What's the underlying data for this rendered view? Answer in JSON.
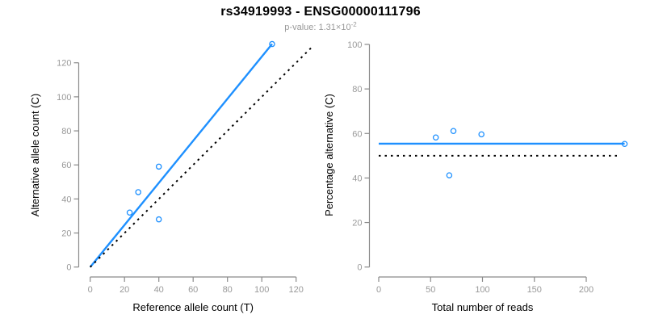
{
  "header": {
    "title": "rs34919993 - ENSG00000111796",
    "pvalue_prefix": "p-value: 1.31×10",
    "pvalue_exponent": "-2"
  },
  "colors": {
    "accent_blue": "#1E90FF",
    "line_black": "#000000",
    "axis_gray": "#8A8A8A",
    "tick_label_gray": "#999999",
    "subtitle_gray": "#999999",
    "title_black": "#000000",
    "background": "#FFFFFF"
  },
  "chart_data": [
    {
      "type": "scatter",
      "panel": "allele-counts",
      "xlabel": "Reference allele count (T)",
      "ylabel": "Alternative allele count (C)",
      "xlim": [
        0,
        130
      ],
      "ylim": [
        0,
        132
      ],
      "xticks": [
        0,
        20,
        40,
        60,
        80,
        100,
        120
      ],
      "yticks": [
        0,
        20,
        40,
        60,
        80,
        100,
        120
      ],
      "grid": false,
      "legend": null,
      "points": [
        [
          23,
          32
        ],
        [
          28,
          44
        ],
        [
          40,
          59
        ],
        [
          40,
          28
        ],
        [
          106,
          131
        ]
      ],
      "lines": [
        {
          "name": "fit-line",
          "style": "solid",
          "color_key": "blue",
          "from": [
            0,
            0
          ],
          "to": [
            106,
            131
          ]
        },
        {
          "name": "identity-line",
          "style": "dotted",
          "color_key": "black",
          "from": [
            0,
            0
          ],
          "to": [
            129.5,
            129.5
          ]
        }
      ]
    },
    {
      "type": "scatter",
      "panel": "percentage-vs-coverage",
      "xlabel": "Total number of reads",
      "ylabel": "Percentage alternative (C)",
      "xlim": [
        0,
        237
      ],
      "ylim": [
        0,
        100
      ],
      "xticks": [
        0,
        50,
        100,
        150,
        200
      ],
      "yticks": [
        0,
        20,
        40,
        60,
        80,
        100
      ],
      "grid": false,
      "legend": null,
      "points": [
        [
          55,
          58.2
        ],
        [
          72,
          61.1
        ],
        [
          99,
          59.6
        ],
        [
          68,
          41.2
        ],
        [
          237,
          55.3
        ]
      ],
      "lines": [
        {
          "name": "mean-percentage-line",
          "style": "solid",
          "color_key": "blue",
          "from": [
            0,
            55.4
          ],
          "to": [
            237,
            55.4
          ]
        },
        {
          "name": "fifty-percent-line",
          "style": "dotted",
          "color_key": "black",
          "from": [
            0,
            50
          ],
          "to": [
            232,
            50
          ]
        }
      ]
    }
  ]
}
